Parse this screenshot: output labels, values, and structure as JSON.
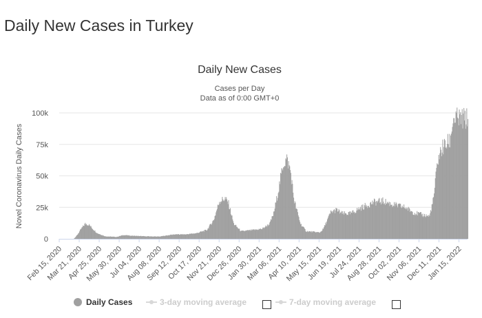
{
  "page": {
    "title": "Daily New Cases in Turkey"
  },
  "colors": {
    "bar": "#a0a0a0",
    "grid": "#e6e6e6",
    "text": "#333333",
    "legend_inactive": "#cccccc"
  },
  "chart_data": {
    "type": "bar",
    "title": "Daily New Cases",
    "subtitle_lines": [
      "Cases per Day",
      "Data as of 0:00 GMT+0"
    ],
    "xlabel": "",
    "ylabel": "Novel Coronavirus Daily Cases",
    "ylim": [
      0,
      100000
    ],
    "yticks": [
      0,
      25000,
      50000,
      75000,
      100000
    ],
    "ytick_labels": [
      "0",
      "25k",
      "50k",
      "75k",
      "100k"
    ],
    "x_start": "2020-02-15",
    "x_end": "2022-01-30",
    "x_tick_labels": [
      "Feb 15, 2020",
      "Mar 21, 2020",
      "Apr 25, 2020",
      "May 30, 2020",
      "Jul 04, 2020",
      "Aug 08, 2020",
      "Sep 12, 2020",
      "Oct 17, 2020",
      "Nov 21, 2020",
      "Dec 26, 2020",
      "Jan 30, 2021",
      "Mar 06, 2021",
      "Apr 10, 2021",
      "May 15, 2021",
      "Jun 19, 2021",
      "Jul 24, 2021",
      "Aug 28, 2021",
      "Oct 02, 2021",
      "Nov 06, 2021",
      "Dec 11, 2021",
      "Jan 15, 2022"
    ],
    "series": [
      {
        "name": "Daily Cases",
        "keypoints": [
          [
            0,
            0
          ],
          [
            25,
            0
          ],
          [
            31,
            3000
          ],
          [
            38,
            8000
          ],
          [
            45,
            12000
          ],
          [
            52,
            11000
          ],
          [
            58,
            8000
          ],
          [
            66,
            4500
          ],
          [
            80,
            2000
          ],
          [
            100,
            1500
          ],
          [
            112,
            3000
          ],
          [
            125,
            2500
          ],
          [
            150,
            2000
          ],
          [
            175,
            1800
          ],
          [
            200,
            3500
          ],
          [
            220,
            3500
          ],
          [
            240,
            4500
          ],
          [
            258,
            7000
          ],
          [
            270,
            15000
          ],
          [
            280,
            30000
          ],
          [
            290,
            32000
          ],
          [
            296,
            28000
          ],
          [
            305,
            12000
          ],
          [
            318,
            6000
          ],
          [
            340,
            7000
          ],
          [
            355,
            8000
          ],
          [
            368,
            12000
          ],
          [
            375,
            20000
          ],
          [
            383,
            38000
          ],
          [
            392,
            60000
          ],
          [
            398,
            63000
          ],
          [
            404,
            55000
          ],
          [
            411,
            30000
          ],
          [
            422,
            12000
          ],
          [
            432,
            6000
          ],
          [
            445,
            5500
          ],
          [
            456,
            5000
          ],
          [
            462,
            8000
          ],
          [
            475,
            21000
          ],
          [
            485,
            23000
          ],
          [
            495,
            20000
          ],
          [
            510,
            20000
          ],
          [
            525,
            24000
          ],
          [
            550,
            29000
          ],
          [
            566,
            30000
          ],
          [
            585,
            27000
          ],
          [
            605,
            25000
          ],
          [
            620,
            21000
          ],
          [
            635,
            19000
          ],
          [
            648,
            18000
          ],
          [
            655,
            32000
          ],
          [
            662,
            62000
          ],
          [
            670,
            72000
          ],
          [
            678,
            75000
          ],
          [
            684,
            78000
          ],
          [
            689,
            95000
          ]
        ]
      }
    ],
    "legend": [
      {
        "label": "Daily Cases",
        "active": true
      },
      {
        "label": "3-day moving average",
        "active": false
      },
      {
        "label": "7-day moving average",
        "active": false
      }
    ]
  }
}
